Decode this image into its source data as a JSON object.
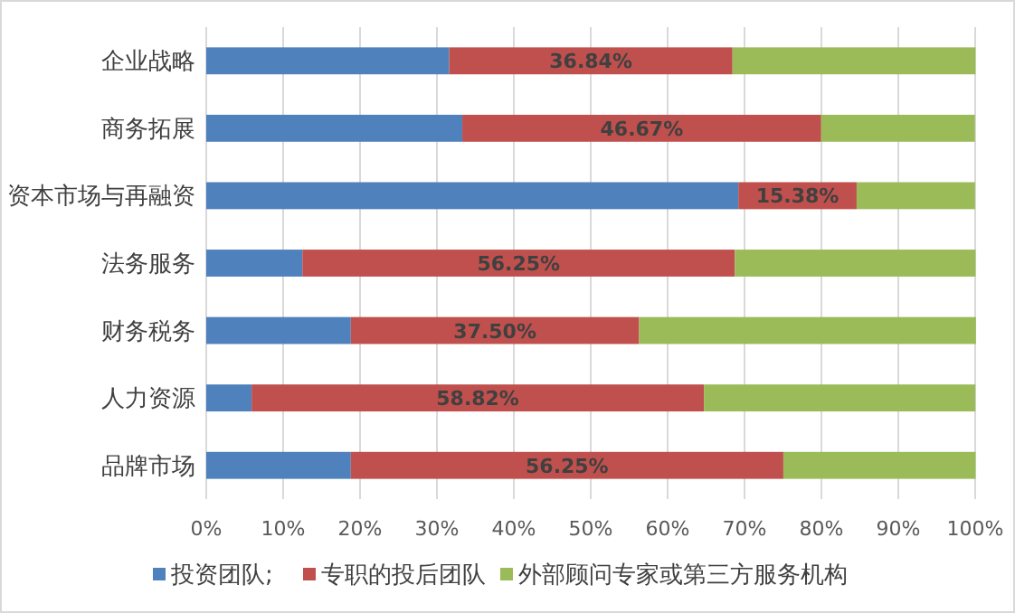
{
  "chart_data": {
    "type": "bar",
    "orientation": "horizontal",
    "stacked": true,
    "categories": [
      "企业战略",
      "商务拓展",
      "资本市场与再融资",
      "法务服务",
      "财务税务",
      "人力资源",
      "品牌市场"
    ],
    "series": [
      {
        "name": "投资团队;",
        "color": "#4f81bd",
        "values": [
          31.6,
          33.3,
          69.2,
          12.5,
          18.8,
          5.9,
          18.8
        ]
      },
      {
        "name": "专职的投后团队",
        "color": "#c0504d",
        "values": [
          36.84,
          46.67,
          15.38,
          56.25,
          37.5,
          58.82,
          56.25
        ],
        "value_labels": [
          "36.84%",
          "46.67%",
          "15.38%",
          "56.25%",
          "37.50%",
          "58.82%",
          "56.25%"
        ]
      },
      {
        "name": "外部顾问专家或第三方服务机构",
        "color": "#9bbb59",
        "values": [
          31.6,
          20,
          15.4,
          31.3,
          43.8,
          35.3,
          25
        ]
      }
    ],
    "xlim": [
      0,
      100
    ],
    "xticks": [
      {
        "value": 0,
        "label": "0%"
      },
      {
        "value": 10,
        "label": "10%"
      },
      {
        "value": 20,
        "label": "20%"
      },
      {
        "value": 30,
        "label": "30%"
      },
      {
        "value": 40,
        "label": "40%"
      },
      {
        "value": 50,
        "label": "50%"
      },
      {
        "value": 60,
        "label": "60%"
      },
      {
        "value": 70,
        "label": "70%"
      },
      {
        "value": 80,
        "label": "80%"
      },
      {
        "value": 90,
        "label": "90%"
      },
      {
        "value": 100,
        "label": "100%"
      }
    ],
    "grid": "x",
    "legend": "bottom"
  }
}
